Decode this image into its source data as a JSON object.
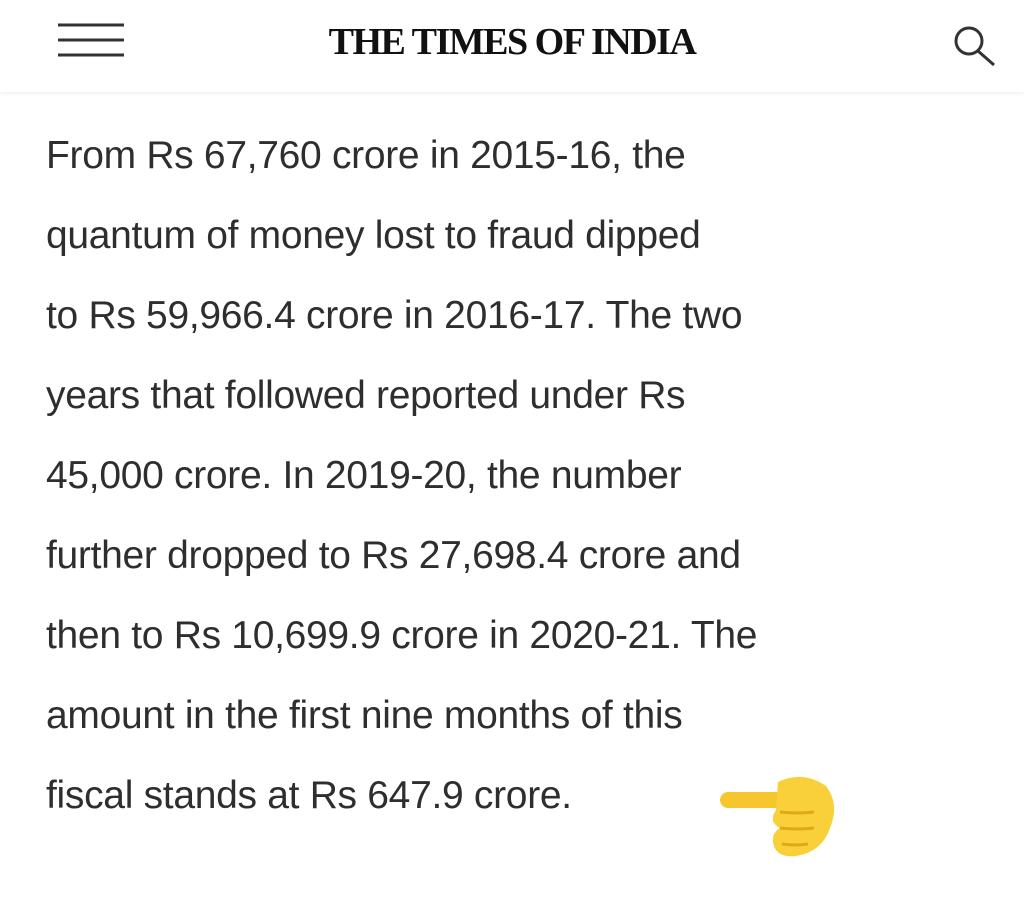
{
  "header": {
    "title": "THE TIMES OF INDIA"
  },
  "article": {
    "lines": [
      "From Rs 67,760 crore in 2015-16, the",
      "quantum of money lost to fraud dipped",
      "to Rs 59,966.4 crore in 2016-17. The two",
      "years that followed reported under Rs",
      "45,000 crore. In 2019-20, the number",
      "further dropped to Rs 27,698.4 crore and",
      "then to Rs 10,699.9 crore in 2020-21. The",
      "amount in the first nine months of this",
      "fiscal stands at Rs 647.9 crore."
    ]
  }
}
